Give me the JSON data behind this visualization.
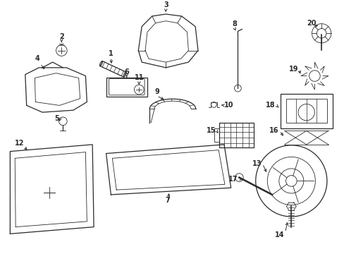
{
  "bg_color": "#ffffff",
  "line_color": "#2a2a2a",
  "label_color": "#000000",
  "figw": 4.89,
  "figh": 3.6,
  "dpi": 100,
  "lw_thin": 0.6,
  "lw_med": 0.9,
  "lw_thick": 1.2,
  "label_fs": 7.0,
  "xlim": [
    0,
    489
  ],
  "ylim": [
    0,
    360
  ]
}
